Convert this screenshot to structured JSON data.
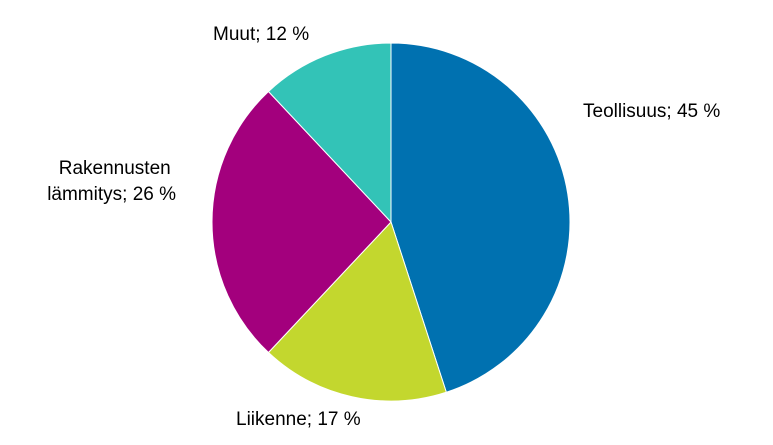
{
  "chart_data": {
    "type": "pie",
    "title": "",
    "start_angle_deg": 0,
    "direction": "clockwise",
    "slices": [
      {
        "label": "Teollisuus; 45 %",
        "category": "Teollisuus",
        "value": 45,
        "color": "#0071B0"
      },
      {
        "label": "Liikenne; 17 %",
        "category": "Liikenne",
        "value": 17,
        "color": "#C3D72E"
      },
      {
        "label": "Rakennusten lämmitys; 26 %",
        "category": "Rakennusten lämmitys",
        "value": 26,
        "color": "#A3007D"
      },
      {
        "label": "Muut; 12 %",
        "category": "Muut",
        "value": 12,
        "color": "#33C3B7"
      }
    ],
    "legend": "none"
  }
}
